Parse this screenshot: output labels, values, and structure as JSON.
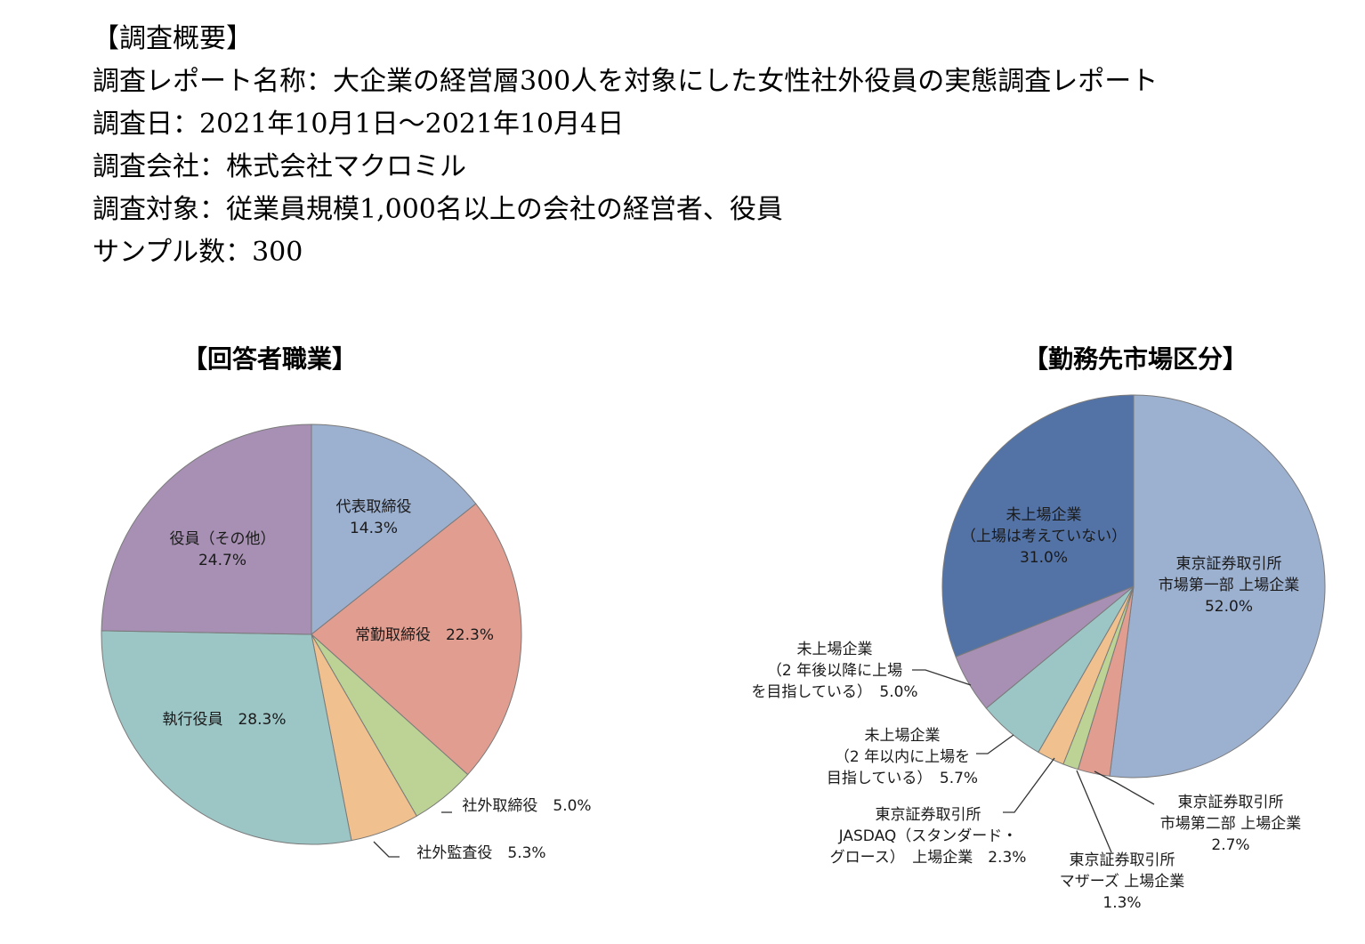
{
  "overview": {
    "heading": "【調査概要】",
    "lines": [
      "調査レポート名称：大企業の経営層300人を対象にした女性社外役員の実態調査レポート",
      "調査日：2021年10月1日～2021年10月4日",
      "調査会社：株式会社マクロミル",
      "調査対象：従業員規模1,000名以上の会社の経営者、役員",
      "サンプル数：300"
    ]
  },
  "chart_data": [
    {
      "type": "pie",
      "title": "【回答者職業】",
      "unit": "%",
      "slices": [
        {
          "label": "代表取締役",
          "value": 14.3,
          "color": "#9cb0d0",
          "display_label": [
            "代表取締役",
            "14.3%"
          ]
        },
        {
          "label": "常勤取締役",
          "value": 22.3,
          "color": "#e09d90",
          "display_label": [
            "常勤取締役　22.3%"
          ]
        },
        {
          "label": "社外取締役",
          "value": 5.0,
          "color": "#bdd395",
          "display_label": [
            "社外取締役　5.0%"
          ]
        },
        {
          "label": "社外監査役",
          "value": 5.3,
          "color": "#f0c18e",
          "display_label": [
            "社外監査役　5.3%"
          ]
        },
        {
          "label": "執行役員",
          "value": 28.3,
          "color": "#9cc6c6",
          "display_label": [
            "執行役員　28.3%"
          ]
        },
        {
          "label": "役員（その他）",
          "value": 24.7,
          "color": "#a790b3",
          "display_label": [
            "役員（その他）",
            "24.7%"
          ]
        }
      ]
    },
    {
      "type": "pie",
      "title": "【勤務先市場区分】",
      "unit": "%",
      "slices": [
        {
          "label": "東京証券取引所 市場第一部 上場企業",
          "value": 52.0,
          "color": "#9cb0d0",
          "display_label": [
            "東京証券取引所",
            "市場第一部 上場企業",
            "52.0%"
          ]
        },
        {
          "label": "東京証券取引所 市場第二部 上場企業",
          "value": 2.7,
          "color": "#e09d90",
          "display_label": [
            "東京証券取引所",
            "市場第二部 上場企業",
            "2.7%"
          ]
        },
        {
          "label": "東京証券取引所 マザーズ 上場企業",
          "value": 1.3,
          "color": "#bdd395",
          "display_label": [
            "東京証券取引所",
            "マザーズ 上場企業",
            "1.3%"
          ]
        },
        {
          "label": "東京証券取引所 JASDAQ（スタンダード・グロース） 上場企業",
          "value": 2.3,
          "color": "#f0c18e",
          "display_label": [
            "東京証券取引所",
            "JASDAQ（スタンダード・",
            "グロース）　上場企業　2.3%"
          ]
        },
        {
          "label": "未上場企業（2年以内に上場を目指している）",
          "value": 5.7,
          "color": "#9cc6c6",
          "display_label": [
            "未上場企業",
            "（2 年以内に上場を",
            "目指している）　5.7%"
          ]
        },
        {
          "label": "未上場企業（2年後以降に上場を目指している）",
          "value": 5.0,
          "color": "#a790b3",
          "display_label": [
            "未上場企業",
            "（2 年後以降に上場",
            "を目指している）　5.0%"
          ]
        },
        {
          "label": "未上場企業（上場は考えていない）",
          "value": 31.0,
          "color": "#5373a7",
          "display_label": [
            "未上場企業",
            "（上場は考えていない）",
            "31.0%"
          ]
        }
      ]
    }
  ]
}
